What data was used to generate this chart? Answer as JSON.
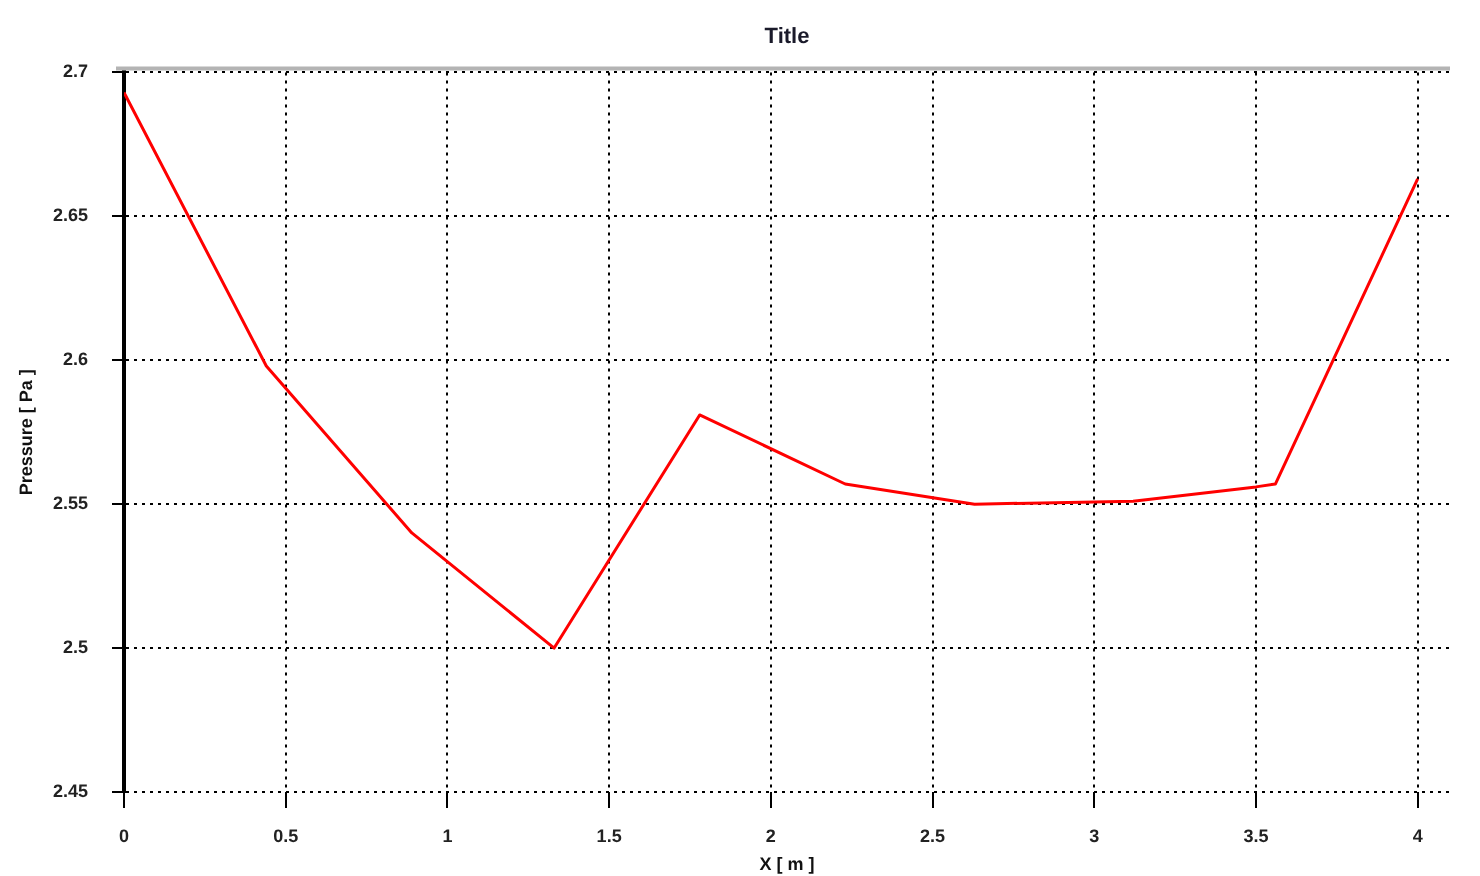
{
  "chart_data": {
    "type": "line",
    "title": "Title",
    "xlabel": "X [ m ]",
    "ylabel": "Pressure [ Pa ]",
    "x": [
      0,
      0.44,
      0.89,
      1.33,
      1.78,
      2.23,
      2.63,
      3.12,
      3.5,
      3.56,
      4.0
    ],
    "series": [
      {
        "color": "#ff0000",
        "values": [
          2.693,
          2.598,
          2.54,
          2.5,
          2.581,
          2.557,
          2.55,
          2.551,
          2.556,
          2.557,
          2.663
        ]
      }
    ],
    "xlim": [
      0,
      4.1
    ],
    "ylim": [
      2.45,
      2.7
    ],
    "xticks": [
      0,
      0.5,
      1,
      1.5,
      2,
      2.5,
      3,
      3.5,
      4
    ],
    "yticks": [
      2.45,
      2.5,
      2.55,
      2.6,
      2.65,
      2.7
    ],
    "grid": true,
    "legend": false,
    "marker": "none",
    "line_style": "solid"
  }
}
